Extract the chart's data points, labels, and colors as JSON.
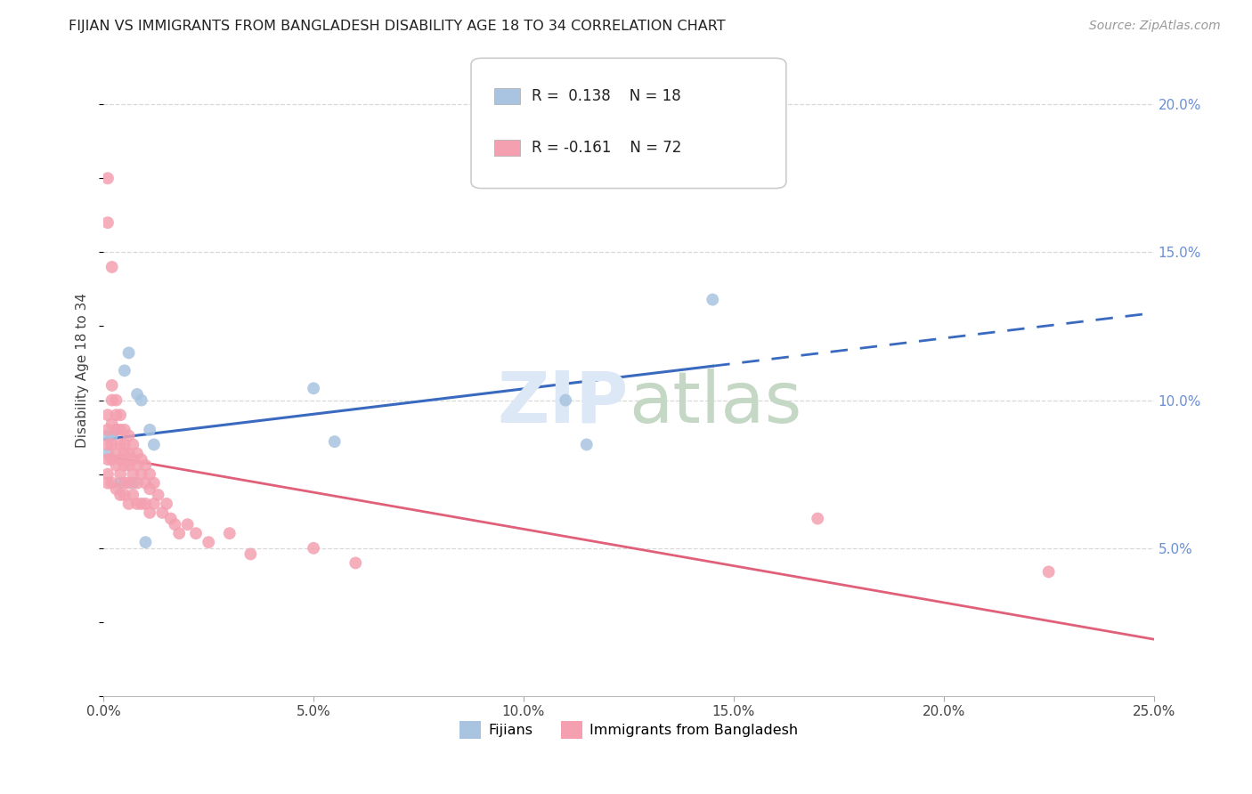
{
  "title": "FIJIAN VS IMMIGRANTS FROM BANGLADESH DISABILITY AGE 18 TO 34 CORRELATION CHART",
  "source": "Source: ZipAtlas.com",
  "ylabel": "Disability Age 18 to 34",
  "legend_labels": [
    "Fijians",
    "Immigrants from Bangladesh"
  ],
  "fijian_color": "#a8c4e0",
  "bangladesh_color": "#f4a0b0",
  "fijian_line_color": "#3a6abf",
  "bangladesh_line_color": "#e0607a",
  "fijian_R": 0.138,
  "fijian_N": 18,
  "bangladesh_R": -0.161,
  "bangladesh_N": 72,
  "xlim": [
    0.0,
    0.25
  ],
  "ylim": [
    0.0,
    0.22
  ],
  "xticks": [
    0.0,
    0.05,
    0.1,
    0.15,
    0.2,
    0.25
  ],
  "yticks": [
    0.05,
    0.1,
    0.15,
    0.2
  ],
  "background_color": "#ffffff",
  "fijian_x": [
    0.001,
    0.001,
    0.002,
    0.003,
    0.004,
    0.005,
    0.006,
    0.007,
    0.008,
    0.009,
    0.01,
    0.011,
    0.012,
    0.05,
    0.055,
    0.11,
    0.115,
    0.145
  ],
  "fijian_y": [
    0.088,
    0.082,
    0.088,
    0.09,
    0.072,
    0.11,
    0.116,
    0.072,
    0.102,
    0.1,
    0.052,
    0.09,
    0.085,
    0.104,
    0.086,
    0.1,
    0.085,
    0.134
  ],
  "bangladesh_x": [
    0.001,
    0.001,
    0.001,
    0.001,
    0.001,
    0.001,
    0.001,
    0.001,
    0.002,
    0.002,
    0.002,
    0.002,
    0.002,
    0.002,
    0.002,
    0.003,
    0.003,
    0.003,
    0.003,
    0.003,
    0.003,
    0.004,
    0.004,
    0.004,
    0.004,
    0.004,
    0.004,
    0.005,
    0.005,
    0.005,
    0.005,
    0.005,
    0.005,
    0.006,
    0.006,
    0.006,
    0.006,
    0.006,
    0.007,
    0.007,
    0.007,
    0.007,
    0.008,
    0.008,
    0.008,
    0.008,
    0.009,
    0.009,
    0.009,
    0.01,
    0.01,
    0.01,
    0.011,
    0.011,
    0.011,
    0.012,
    0.012,
    0.013,
    0.014,
    0.015,
    0.016,
    0.017,
    0.018,
    0.02,
    0.022,
    0.025,
    0.03,
    0.035,
    0.05,
    0.06,
    0.17,
    0.225
  ],
  "bangladesh_y": [
    0.175,
    0.16,
    0.095,
    0.09,
    0.085,
    0.08,
    0.075,
    0.072,
    0.145,
    0.105,
    0.1,
    0.092,
    0.085,
    0.08,
    0.072,
    0.1,
    0.095,
    0.09,
    0.082,
    0.078,
    0.07,
    0.095,
    0.09,
    0.085,
    0.08,
    0.075,
    0.068,
    0.09,
    0.085,
    0.082,
    0.078,
    0.072,
    0.068,
    0.088,
    0.082,
    0.078,
    0.072,
    0.065,
    0.085,
    0.08,
    0.075,
    0.068,
    0.082,
    0.078,
    0.072,
    0.065,
    0.08,
    0.075,
    0.065,
    0.078,
    0.072,
    0.065,
    0.075,
    0.07,
    0.062,
    0.072,
    0.065,
    0.068,
    0.062,
    0.065,
    0.06,
    0.058,
    0.055,
    0.058,
    0.055,
    0.052,
    0.055,
    0.048,
    0.05,
    0.045,
    0.06,
    0.042
  ]
}
